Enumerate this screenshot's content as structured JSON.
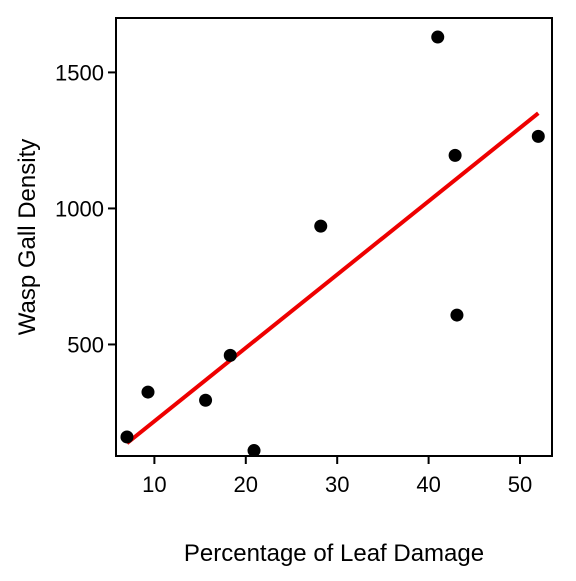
{
  "chart_data": {
    "type": "scatter",
    "title": "",
    "xlabel": "Percentage of Leaf Damage",
    "ylabel": "Wasp Gall Density",
    "xlim": [
      5.8,
      53.5
    ],
    "ylim": [
      90,
      1700
    ],
    "x_ticks": [
      10,
      20,
      30,
      40,
      50
    ],
    "y_ticks": [
      500,
      1000,
      1500
    ],
    "x_tick_labels": [
      "10",
      "20",
      "30",
      "40",
      "50"
    ],
    "y_tick_labels": [
      "500",
      "1000",
      "1500"
    ],
    "grid": false,
    "legend": "none",
    "series": [
      {
        "points": [
          {
            "x": 7.0,
            "y": 160
          },
          {
            "x": 9.3,
            "y": 325
          },
          {
            "x": 15.6,
            "y": 295
          },
          {
            "x": 18.3,
            "y": 460
          },
          {
            "x": 20.9,
            "y": 110
          },
          {
            "x": 28.2,
            "y": 935
          },
          {
            "x": 41.0,
            "y": 1630
          },
          {
            "x": 42.9,
            "y": 1195
          },
          {
            "x": 43.1,
            "y": 608
          },
          {
            "x": 52.0,
            "y": 1265
          }
        ],
        "color": "#000000"
      }
    ],
    "fit_line": {
      "x": [
        7.0,
        52.0
      ],
      "y": [
        137,
        1350
      ],
      "color": "#ee0000"
    }
  }
}
